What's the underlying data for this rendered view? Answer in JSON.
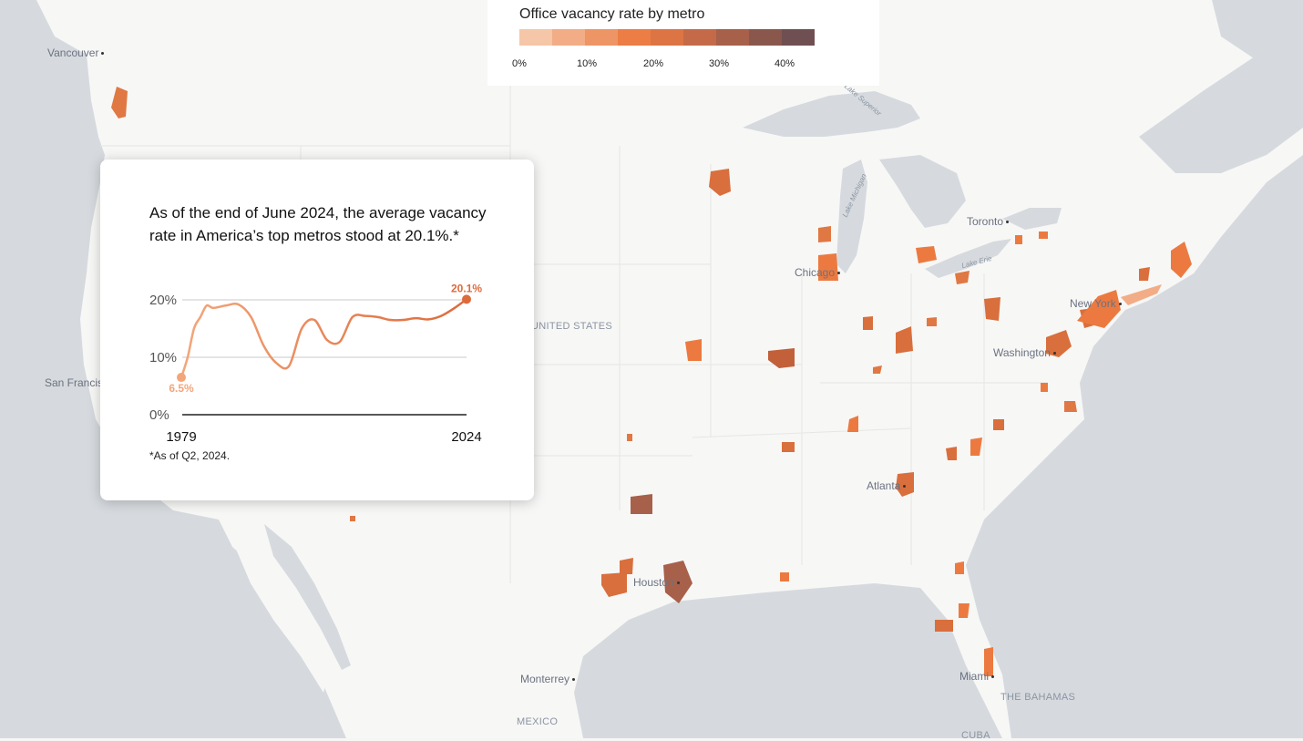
{
  "legend": {
    "title": "Office vacancy rate by metro",
    "colors": [
      "#f6c6a8",
      "#f2ad86",
      "#ee9565",
      "#eb7d45",
      "#dd7443",
      "#c46a48",
      "#a7604a",
      "#8a574d",
      "#6f4f51"
    ],
    "ticks": [
      "0%",
      "10%",
      "20%",
      "30%",
      "40%"
    ]
  },
  "card": {
    "headline": "As of the end of June 2024, the average vacancy rate in America’s top metros stood at 20.1%.*",
    "footnote": "*As of Q2, 2024.",
    "chart_data": {
      "type": "line",
      "x_start_label": "1979",
      "x_end_label": "2024",
      "xlim": [
        1979,
        2024
      ],
      "ylim": [
        0,
        20
      ],
      "yticks": [
        "0%",
        "10%",
        "20%"
      ],
      "start_label": "6.5%",
      "end_label": "20.1%",
      "series": [
        {
          "x": [
            1979,
            1980,
            1981,
            1982,
            1983,
            1984,
            1986,
            1988,
            1990,
            1992,
            1994,
            1996,
            1998,
            2000,
            2002,
            2004,
            2006,
            2008,
            2010,
            2012,
            2014,
            2016,
            2018,
            2020,
            2022,
            2024
          ],
          "values": [
            6.5,
            10,
            15,
            17,
            19,
            18.6,
            19,
            19.2,
            17,
            12,
            9,
            8.5,
            15,
            16.5,
            13,
            12.7,
            17,
            17.2,
            17,
            16.5,
            16.5,
            16.8,
            16.6,
            17.2,
            18.5,
            20.1
          ]
        }
      ]
    }
  },
  "cities": {
    "vancouver": "Vancouver",
    "san_francisco": "San Francisco",
    "chicago": "Chicago",
    "toronto": "Toronto",
    "new_york": "New York",
    "washington": "Washington",
    "atlanta": "Atlanta",
    "houston": "Houston",
    "miami": "Miami",
    "monterrey": "Monterrey"
  },
  "regions": {
    "us": "UNITED STATES",
    "mexico": "MEXICO",
    "bahamas": "THE BAHAMAS",
    "cuba": "CUBA"
  },
  "lakes": {
    "superior": "Lake Superior",
    "michigan": "Lake Michigan",
    "erie": "Lake Erie"
  }
}
